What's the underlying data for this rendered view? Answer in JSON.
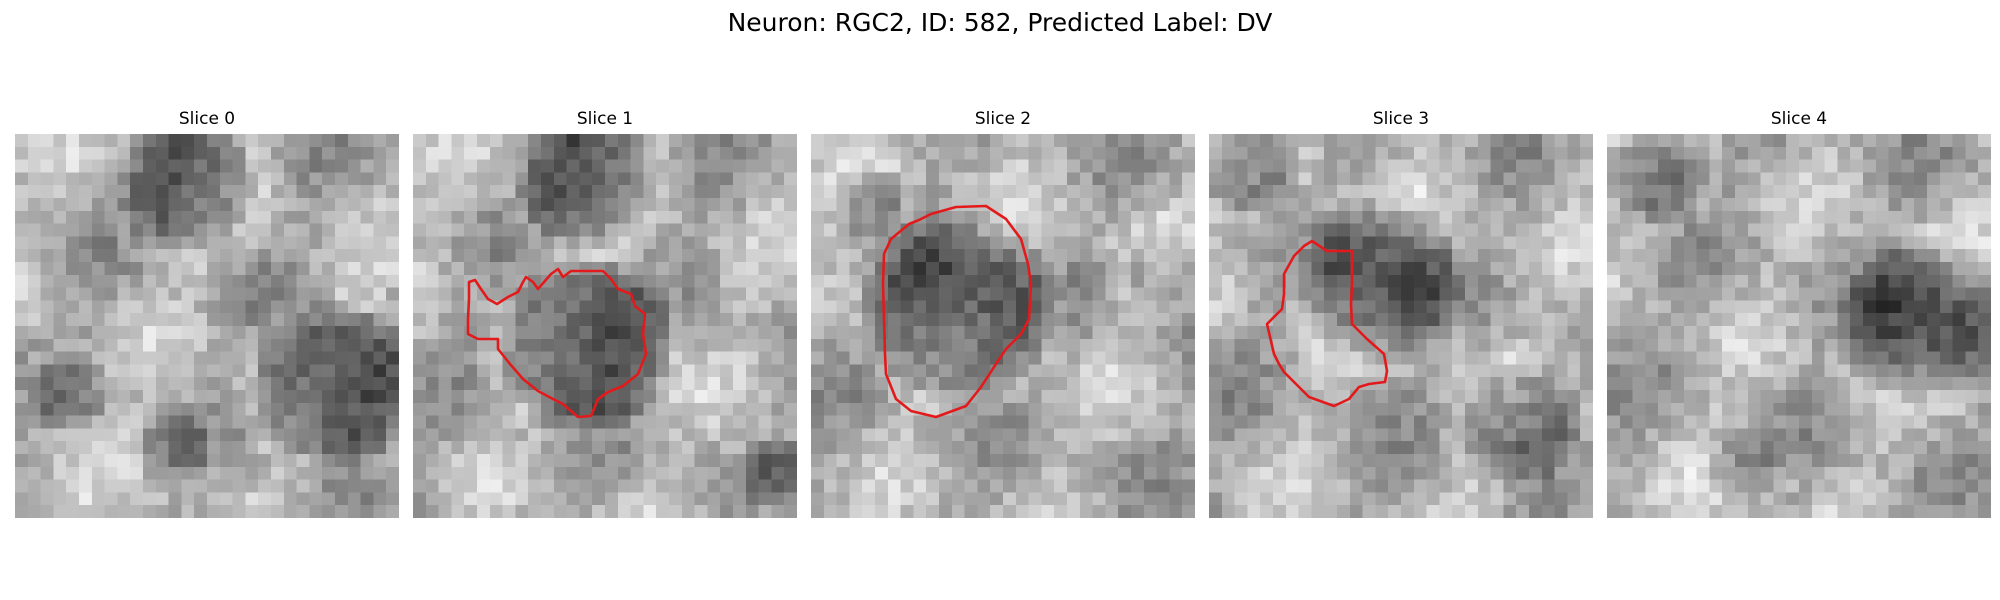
{
  "figure": {
    "title": "Neuron: RGC2, ID: 582, Predicted Label: DV"
  },
  "panels": [
    {
      "title": "Slice 0",
      "has_contour": false
    },
    {
      "title": "Slice 1",
      "has_contour": true
    },
    {
      "title": "Slice 2",
      "has_contour": true
    },
    {
      "title": "Slice 3",
      "has_contour": true
    },
    {
      "title": "Slice 4",
      "has_contour": false
    }
  ],
  "colors": {
    "contour": "#e31a1c",
    "colormap": "grayscale"
  }
}
